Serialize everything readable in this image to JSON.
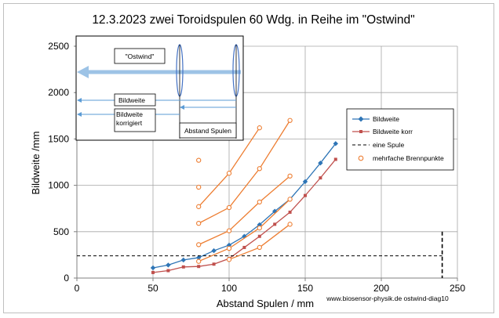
{
  "chart_data": {
    "type": "line",
    "title": "12.3.2023 zwei Toroidspulen 60 Wdg. in Reihe  im \"Ostwind\"",
    "xlabel": "Abstand Spulen / mm",
    "ylabel": "Bildweite  /mm",
    "xlim": [
      0,
      250
    ],
    "ylim": [
      0,
      2500
    ],
    "xticks": [
      "0",
      "50",
      "100",
      "150",
      "200",
      "250"
    ],
    "yticks": [
      "0",
      "500",
      "1000",
      "1500",
      "2000",
      "2500"
    ],
    "grid": true,
    "legend_position": "right",
    "series": [
      {
        "name": "Bildweite",
        "color": "#2E75B6",
        "marker": "diamond",
        "x": [
          50,
          60,
          70,
          80,
          90,
          100,
          110,
          120,
          130,
          140,
          150,
          160,
          170
        ],
        "y": [
          110,
          140,
          195,
          220,
          295,
          355,
          450,
          575,
          720,
          850,
          1040,
          1240,
          1450
        ]
      },
      {
        "name": "Bildweite korr",
        "color": "#C0504D",
        "marker": "square",
        "x": [
          50,
          60,
          70,
          80,
          90,
          100,
          110,
          120,
          130,
          140,
          150,
          160,
          170
        ],
        "y": [
          60,
          80,
          120,
          125,
          150,
          210,
          330,
          450,
          580,
          710,
          890,
          1080,
          1280
        ]
      },
      {
        "name": "eine Spule",
        "color": "#000000",
        "style": "dashed",
        "points": [
          [
            0,
            240
          ],
          [
            240,
            240
          ],
          [
            240,
            500
          ],
          [
            240,
            0
          ]
        ]
      },
      {
        "name": "mehrfache Brennpunkte",
        "color": "#ED7D31",
        "marker": "open-circle",
        "groups": [
          {
            "x": [
              80,
              100,
              120,
              140
            ],
            "y": [
              180,
              320,
              540,
              850
            ]
          },
          {
            "x": [
              80,
              100,
              120,
              140
            ],
            "y": [
              360,
              510,
              820,
              1100
            ]
          },
          {
            "x": [
              80,
              100,
              120,
              140
            ],
            "y": [
              590,
              760,
              1180,
              1700
            ]
          },
          {
            "x": [
              80,
              100,
              120
            ],
            "y": [
              770,
              1130,
              1620
            ]
          },
          {
            "x": [
              100,
              120,
              140
            ],
            "y": [
              200,
              330,
              580
            ]
          }
        ],
        "isolated": {
          "x": [
            80,
            80
          ],
          "y": [
            980,
            1270
          ]
        }
      }
    ],
    "legend": [
      "Bildweite",
      "Bildweite korr",
      "eine Spule",
      "mehrfache Brennpunkte"
    ],
    "inset": {
      "ostwind": "\"Ostwind\"",
      "bildweite": "Bildweite",
      "bildweite_korr": "Bildweite korrigiert",
      "abstand": "Abstand Spulen"
    },
    "footer": "www.biosensor-physik.de  ostwind-diag10"
  },
  "colors": {
    "axis": "#808080",
    "grid": "#a6a6a6",
    "inset_arrow": "#9DC3E6",
    "inset_line": "#5B9BD5",
    "coil": "#4472C4"
  }
}
